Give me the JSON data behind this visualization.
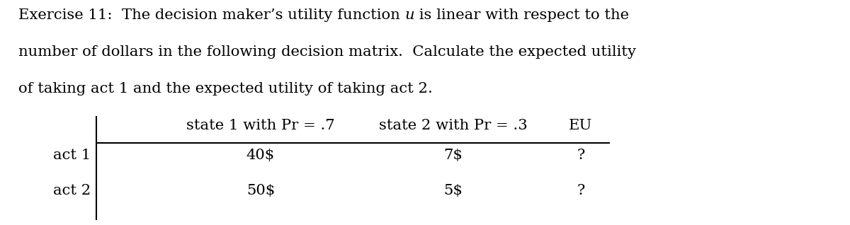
{
  "title_line1_pre": "Exercise 11:  The decision maker’s utility function ",
  "title_italic": "u",
  "title_line1_post": " is linear with respect to the",
  "title_line2": "number of dollars in the following decision matrix.  Calculate the expected utility",
  "title_line3": "of taking act 1 and the expected utility of taking act 2.",
  "col_headers": [
    "state 1 with Pr = .7",
    "state 2 with Pr = .3",
    "EU"
  ],
  "row_labels": [
    "act 1",
    "act 2"
  ],
  "cell_data": [
    [
      "40$",
      "7$",
      "?"
    ],
    [
      "50$",
      "5$",
      "?"
    ]
  ],
  "bg_color": "#ffffff",
  "text_color": "#000000",
  "font_size": 15.2,
  "font_family": "DejaVu Serif"
}
